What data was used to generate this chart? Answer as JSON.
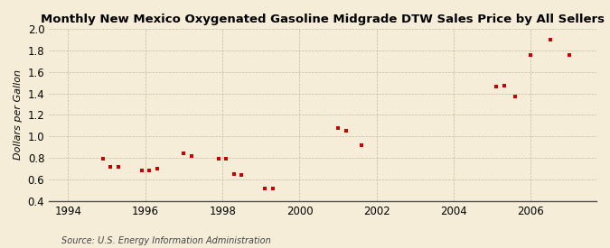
{
  "title": "Monthly New Mexico Oxygenated Gasoline Midgrade DTW Sales Price by All Sellers",
  "ylabel": "Dollars per Gallon",
  "source": "Source: U.S. Energy Information Administration",
  "background_color": "#f5edd8",
  "data_color": "#cc0000",
  "xlim": [
    1993.5,
    2007.7
  ],
  "ylim": [
    0.4,
    2.0
  ],
  "xticks": [
    1994,
    1996,
    1998,
    2000,
    2002,
    2004,
    2006
  ],
  "yticks": [
    0.4,
    0.6,
    0.8,
    1.0,
    1.2,
    1.4,
    1.6,
    1.8,
    2.0
  ],
  "data_x": [
    1994.9,
    1995.1,
    1995.3,
    1995.9,
    1996.1,
    1996.3,
    1997.0,
    1997.2,
    1997.9,
    1998.1,
    1998.3,
    1998.5,
    1999.1,
    1999.3,
    2001.0,
    2001.2,
    2001.6,
    2005.1,
    2005.3,
    2005.6,
    2006.0,
    2006.5,
    2007.0
  ],
  "data_y": [
    0.79,
    0.72,
    0.72,
    0.68,
    0.68,
    0.7,
    0.84,
    0.82,
    0.79,
    0.79,
    0.65,
    0.64,
    0.52,
    0.52,
    1.08,
    1.05,
    0.92,
    1.46,
    1.47,
    1.37,
    1.76,
    1.9,
    1.76
  ]
}
